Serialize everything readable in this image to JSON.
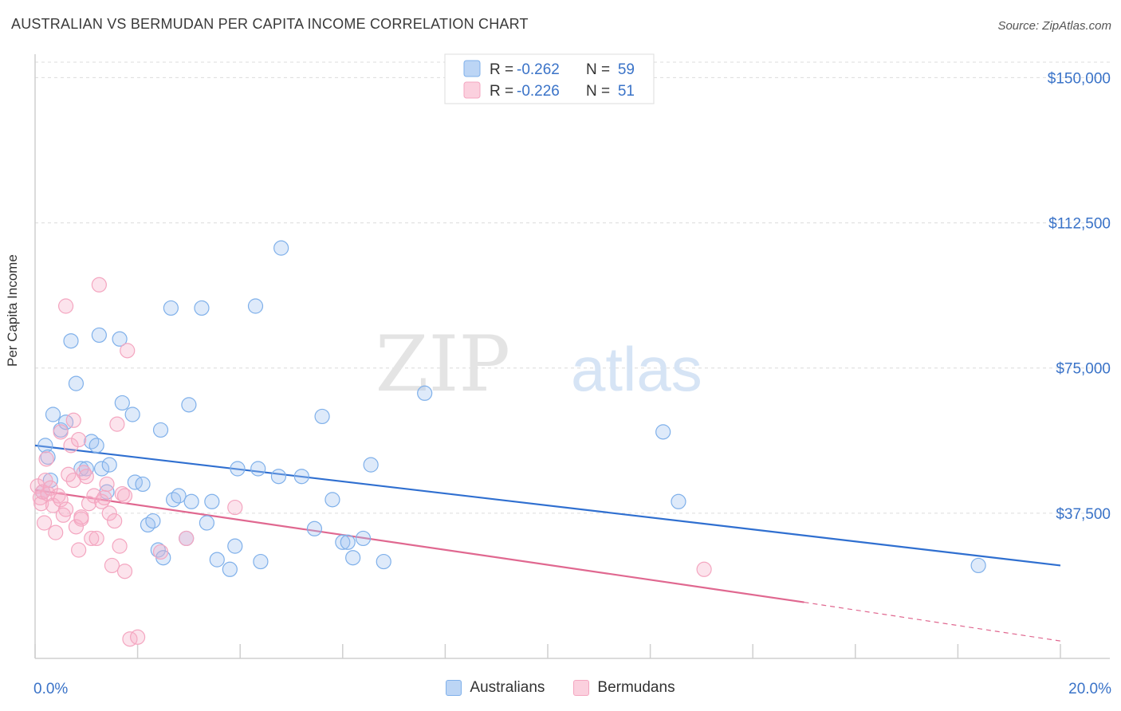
{
  "title": "AUSTRALIAN VS BERMUDAN PER CAPITA INCOME CORRELATION CHART",
  "source": "Source: ZipAtlas.com",
  "watermark": {
    "part1": "ZIP",
    "part2": "atlas"
  },
  "chart_data": {
    "type": "scatter",
    "ylabel": "Per Capita Income",
    "xlim": [
      0,
      20
    ],
    "ylim": [
      0,
      154000
    ],
    "x_tick_labels": [
      "0.0%",
      "20.0%"
    ],
    "y_ticks": [
      37500,
      75000,
      112500,
      150000
    ],
    "y_tick_labels": [
      "$37,500",
      "$75,000",
      "$112,500",
      "$150,000"
    ],
    "grid": true,
    "legend_placement": "top-center",
    "series": [
      {
        "name": "Australians",
        "color": "#7fb0ea",
        "line_color": "#2f6fd0",
        "r_label": "R =",
        "r_value": "-0.262",
        "n_label": "N =",
        "n_value": "59",
        "trend": {
          "x0": 0,
          "y0": 55000,
          "x1": 20,
          "y1": 24000
        },
        "points": [
          [
            0.2,
            55000
          ],
          [
            0.25,
            52000
          ],
          [
            0.3,
            46000
          ],
          [
            0.35,
            63000
          ],
          [
            0.5,
            59000
          ],
          [
            0.6,
            61000
          ],
          [
            0.7,
            82000
          ],
          [
            0.8,
            71000
          ],
          [
            0.9,
            49000
          ],
          [
            1.0,
            49000
          ],
          [
            1.1,
            56000
          ],
          [
            1.2,
            55000
          ],
          [
            1.25,
            83500
          ],
          [
            1.3,
            49000
          ],
          [
            1.45,
            50000
          ],
          [
            1.4,
            43000
          ],
          [
            1.65,
            82500
          ],
          [
            1.7,
            66000
          ],
          [
            1.9,
            63000
          ],
          [
            1.95,
            45500
          ],
          [
            2.1,
            45000
          ],
          [
            2.2,
            34500
          ],
          [
            2.3,
            35500
          ],
          [
            2.4,
            28000
          ],
          [
            2.45,
            59000
          ],
          [
            2.5,
            26000
          ],
          [
            2.65,
            90500
          ],
          [
            2.7,
            41000
          ],
          [
            2.8,
            42000
          ],
          [
            2.95,
            31000
          ],
          [
            3.0,
            65500
          ],
          [
            3.05,
            40500
          ],
          [
            3.25,
            90500
          ],
          [
            3.35,
            35000
          ],
          [
            3.45,
            40500
          ],
          [
            3.55,
            25500
          ],
          [
            3.8,
            23000
          ],
          [
            3.9,
            29000
          ],
          [
            3.95,
            49000
          ],
          [
            4.3,
            91000
          ],
          [
            4.4,
            25000
          ],
          [
            4.35,
            49000
          ],
          [
            4.75,
            47000
          ],
          [
            4.8,
            106000
          ],
          [
            5.2,
            47000
          ],
          [
            5.45,
            33500
          ],
          [
            5.6,
            62500
          ],
          [
            5.8,
            41000
          ],
          [
            6.0,
            30000
          ],
          [
            6.1,
            30000
          ],
          [
            6.2,
            26000
          ],
          [
            6.4,
            31000
          ],
          [
            6.55,
            50000
          ],
          [
            6.8,
            25000
          ],
          [
            7.6,
            68500
          ],
          [
            12.25,
            58500
          ],
          [
            12.55,
            40500
          ],
          [
            18.4,
            24000
          ],
          [
            0.15,
            43000
          ]
        ]
      },
      {
        "name": "Bermudans",
        "color": "#f4a6c0",
        "line_color": "#e06890",
        "r_label": "R =",
        "r_value": "-0.226",
        "n_label": "N =",
        "n_value": "51",
        "trend": {
          "x0": 0,
          "y0": 43500,
          "x1": 15,
          "y1": 14500
        },
        "trend_dashed": {
          "x0": 15,
          "y0": 14500,
          "x1": 20,
          "y1": 4500
        },
        "points": [
          [
            0.05,
            44500
          ],
          [
            0.1,
            41500
          ],
          [
            0.12,
            40000
          ],
          [
            0.15,
            43000
          ],
          [
            0.18,
            35000
          ],
          [
            0.2,
            46000
          ],
          [
            0.22,
            51500
          ],
          [
            0.25,
            42500
          ],
          [
            0.3,
            44000
          ],
          [
            0.35,
            39500
          ],
          [
            0.4,
            32500
          ],
          [
            0.45,
            42000
          ],
          [
            0.5,
            58500
          ],
          [
            0.5,
            41000
          ],
          [
            0.55,
            37000
          ],
          [
            0.6,
            91000
          ],
          [
            0.6,
            38500
          ],
          [
            0.65,
            47500
          ],
          [
            0.7,
            55000
          ],
          [
            0.75,
            61500
          ],
          [
            0.75,
            46000
          ],
          [
            0.8,
            34000
          ],
          [
            0.85,
            28000
          ],
          [
            0.85,
            56500
          ],
          [
            0.9,
            36000
          ],
          [
            0.95,
            48000
          ],
          [
            1.0,
            47000
          ],
          [
            1.05,
            40000
          ],
          [
            1.1,
            31000
          ],
          [
            1.15,
            42000
          ],
          [
            1.2,
            31000
          ],
          [
            1.25,
            96500
          ],
          [
            1.3,
            40500
          ],
          [
            1.35,
            41500
          ],
          [
            1.4,
            45000
          ],
          [
            1.45,
            37500
          ],
          [
            1.5,
            24000
          ],
          [
            1.55,
            35500
          ],
          [
            1.6,
            60500
          ],
          [
            1.65,
            29000
          ],
          [
            1.7,
            42500
          ],
          [
            1.8,
            79500
          ],
          [
            1.75,
            42000
          ],
          [
            1.75,
            22500
          ],
          [
            1.85,
            5000
          ],
          [
            2.0,
            5500
          ],
          [
            2.45,
            27500
          ],
          [
            2.95,
            31000
          ],
          [
            3.9,
            39000
          ],
          [
            13.05,
            23000
          ],
          [
            0.9,
            36500
          ]
        ]
      }
    ]
  }
}
